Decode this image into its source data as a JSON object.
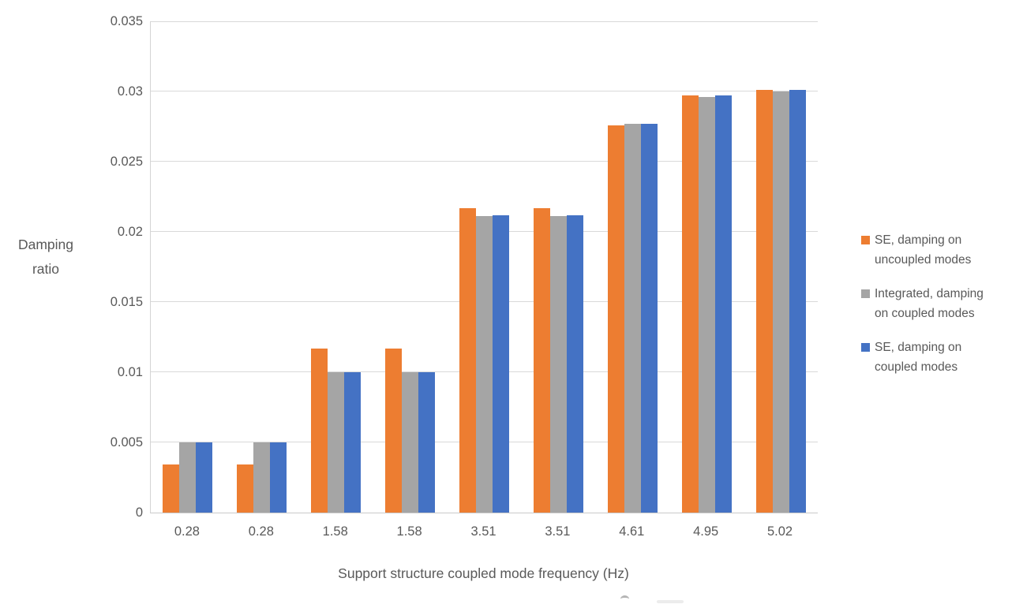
{
  "chart_data": {
    "type": "bar",
    "categories": [
      "0.28",
      "0.28",
      "1.58",
      "1.58",
      "3.51",
      "3.51",
      "4.61",
      "4.95",
      "5.02"
    ],
    "series": [
      {
        "name": "SE, damping on uncoupled modes",
        "legend_lines": [
          "SE, damping on",
          "uncoupled modes"
        ],
        "color": "#ED7D31",
        "values": [
          0.0034,
          0.0034,
          0.0117,
          0.0117,
          0.0217,
          0.0217,
          0.0276,
          0.0297,
          0.0301
        ]
      },
      {
        "name": "Integrated, damping on coupled modes",
        "legend_lines": [
          "Integrated, damping",
          "on coupled modes"
        ],
        "color": "#A5A5A5",
        "values": [
          0.005,
          0.005,
          0.01,
          0.01,
          0.0211,
          0.0211,
          0.0277,
          0.0296,
          0.03
        ]
      },
      {
        "name": "SE, damping on coupled modes",
        "legend_lines": [
          "SE, damping on",
          "coupled modes"
        ],
        "color": "#4472C4",
        "values": [
          0.005,
          0.005,
          0.01,
          0.01,
          0.0212,
          0.0212,
          0.0277,
          0.0297,
          0.0301
        ]
      }
    ],
    "xlabel": "Support structure coupled mode frequency (Hz)",
    "ylabel": "Damping ratio",
    "ylabel_lines": [
      "Damping",
      "ratio"
    ],
    "ylim": [
      0,
      0.035
    ],
    "yticks": [
      {
        "value": 0,
        "label": "0"
      },
      {
        "value": 0.005,
        "label": "0.005"
      },
      {
        "value": 0.01,
        "label": "0.01"
      },
      {
        "value": 0.015,
        "label": "0.015"
      },
      {
        "value": 0.02,
        "label": "0.02"
      },
      {
        "value": 0.025,
        "label": "0.025"
      },
      {
        "value": 0.03,
        "label": "0.03"
      },
      {
        "value": 0.035,
        "label": "0.035"
      }
    ],
    "grid": true,
    "legend_position": "right",
    "colors": {
      "text": "#595959",
      "gridline": "#D9D9D9",
      "axis_line": "#C9C9C9",
      "background": "#FFFFFF"
    }
  }
}
